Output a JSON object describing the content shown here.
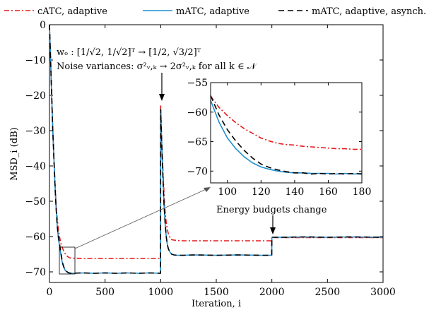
{
  "chart_data": {
    "type": "line",
    "xlabel": "Iteration, i",
    "ylabel": "MSD_i (dB)",
    "xlim": [
      0,
      3000
    ],
    "ylim": [
      -73,
      0
    ],
    "xticks": [
      0,
      500,
      1000,
      1500,
      2000,
      2500,
      3000
    ],
    "yticks": [
      0,
      -10,
      -20,
      -30,
      -40,
      -50,
      -60,
      -70
    ],
    "grid": false,
    "legend_position": "top",
    "series": [
      {
        "name": "cATC, adaptive",
        "color": "#e41a1c",
        "style": "dashdot",
        "x": [
          0,
          10,
          20,
          30,
          40,
          50,
          60,
          70,
          80,
          90,
          100,
          110,
          120,
          130,
          140,
          150,
          160,
          170,
          180,
          200,
          300,
          400,
          500,
          600,
          700,
          800,
          900,
          999,
          1000,
          1010,
          1020,
          1030,
          1040,
          1050,
          1060,
          1070,
          1080,
          1090,
          1100,
          1120,
          1150,
          1200,
          1300,
          1500,
          1700,
          1900,
          1999,
          2000,
          2100,
          2300,
          2500,
          2700,
          3000
        ],
        "y": [
          0,
          -10,
          -20,
          -30,
          -38,
          -45,
          -51,
          -55,
          -58,
          -60,
          -61.5,
          -62.7,
          -63.5,
          -64.3,
          -64.8,
          -65.2,
          -65.6,
          -65.8,
          -66,
          -66.1,
          -66.2,
          -66.2,
          -66.2,
          -66.2,
          -66.2,
          -66.2,
          -66.2,
          -66.2,
          -23,
          -33,
          -41,
          -48,
          -53,
          -56,
          -58,
          -59.3,
          -60,
          -60.6,
          -60.9,
          -61,
          -61.1,
          -61.2,
          -61.2,
          -61.2,
          -61.2,
          -61.2,
          -61.2,
          -60.3,
          -60.3,
          -60.3,
          -60.3,
          -60.3,
          -60.3
        ]
      },
      {
        "name": "mATC, adaptive",
        "color": "#1f8fd0",
        "style": "solid",
        "x": [
          0,
          10,
          20,
          30,
          40,
          50,
          60,
          70,
          80,
          90,
          100,
          110,
          120,
          130,
          140,
          150,
          160,
          170,
          180,
          200,
          300,
          400,
          500,
          600,
          700,
          800,
          900,
          999,
          1000,
          1010,
          1020,
          1030,
          1040,
          1050,
          1060,
          1070,
          1080,
          1090,
          1100,
          1120,
          1150,
          1200,
          1300,
          1500,
          1700,
          1900,
          1999,
          2000,
          2100,
          2300,
          2500,
          2700,
          3000
        ],
        "y": [
          0,
          -10,
          -20,
          -30,
          -38,
          -46,
          -52,
          -57,
          -60.5,
          -62.5,
          -64.5,
          -66.5,
          -68,
          -68.8,
          -69.5,
          -69.8,
          -70.1,
          -70.3,
          -70.4,
          -70.4,
          -70.3,
          -70.4,
          -70.3,
          -70.4,
          -70.3,
          -70.4,
          -70.3,
          -70.4,
          -24,
          -34,
          -43,
          -51,
          -56,
          -60,
          -62.3,
          -63.5,
          -64.2,
          -64.7,
          -65,
          -65.2,
          -65.3,
          -65.3,
          -65.2,
          -65.3,
          -65.2,
          -65.3,
          -65.3,
          -60.2,
          -60.2,
          -60.1,
          -60.2,
          -60.1,
          -60.2
        ]
      },
      {
        "name": "mATC, adaptive, asynch.",
        "color": "#000000",
        "style": "dashed",
        "x": [
          0,
          10,
          20,
          30,
          40,
          50,
          60,
          70,
          80,
          90,
          100,
          110,
          120,
          130,
          140,
          150,
          160,
          170,
          180,
          200,
          300,
          400,
          500,
          600,
          700,
          800,
          900,
          999,
          1000,
          1010,
          1020,
          1030,
          1040,
          1050,
          1060,
          1070,
          1080,
          1090,
          1100,
          1120,
          1150,
          1200,
          1300,
          1500,
          1700,
          1900,
          1999,
          2000,
          2100,
          2300,
          2500,
          2700,
          3000
        ],
        "y": [
          0,
          -10,
          -20,
          -30,
          -38,
          -46,
          -52,
          -57,
          -60,
          -62,
          -64,
          -66,
          -67.7,
          -68.7,
          -69.4,
          -69.8,
          -70,
          -70.2,
          -70.3,
          -70.4,
          -70.3,
          -70.4,
          -70.3,
          -70.4,
          -70.3,
          -70.4,
          -70.3,
          -70.4,
          -24,
          -34,
          -43,
          -51,
          -56,
          -60,
          -62.3,
          -63.5,
          -64.2,
          -64.7,
          -65,
          -65.2,
          -65.3,
          -65.3,
          -65.2,
          -65.3,
          -65.2,
          -65.3,
          -65.3,
          -60.2,
          -60.2,
          -60.1,
          -60.2,
          -60.1,
          -60.2
        ]
      }
    ],
    "inset": {
      "xlim": [
        90,
        180
      ],
      "ylim": [
        -72,
        -55
      ],
      "xticks": [
        100,
        120,
        140,
        160,
        180
      ],
      "yticks": [
        -55,
        -60,
        -65,
        -70
      ],
      "series": [
        {
          "name": "cATC, adaptive",
          "x": [
            90,
            95,
            100,
            105,
            110,
            115,
            120,
            125,
            130,
            135,
            140,
            145,
            150,
            155,
            160,
            165,
            170,
            175,
            180
          ],
          "y": [
            -57.3,
            -59.2,
            -60.6,
            -61.8,
            -62.8,
            -63.6,
            -64.4,
            -64.9,
            -65.3,
            -65.5,
            -65.6,
            -65.8,
            -65.9,
            -66,
            -66.1,
            -66.2,
            -66.2,
            -66.3,
            -66.3
          ]
        },
        {
          "name": "mATC, adaptive",
          "x": [
            90,
            95,
            100,
            105,
            110,
            115,
            120,
            125,
            130,
            135,
            140,
            145,
            150,
            155,
            160,
            165,
            170,
            175,
            180
          ],
          "y": [
            -58,
            -61.7,
            -64.4,
            -66.2,
            -67.6,
            -68.6,
            -69.3,
            -69.7,
            -70,
            -70.2,
            -70.3,
            -70.3,
            -70.4,
            -70.4,
            -70.4,
            -70.5,
            -70.4,
            -70.5,
            -70.4
          ]
        },
        {
          "name": "mATC, adaptive, asynch.",
          "x": [
            90,
            95,
            100,
            105,
            110,
            115,
            120,
            125,
            130,
            135,
            140,
            145,
            150,
            155,
            160,
            165,
            170,
            175,
            180
          ],
          "y": [
            -57.2,
            -60.5,
            -63,
            -64.9,
            -66.5,
            -67.8,
            -68.8,
            -69.4,
            -69.8,
            -70.1,
            -70.3,
            -70.3,
            -70.5,
            -70.4,
            -70.5,
            -70.4,
            -70.5,
            -70.4,
            -70.5
          ]
        }
      ]
    },
    "annotations": {
      "change_line1": "wₒ : [1/√2, 1/√2]ᵀ → [1/2, √3/2]ᵀ",
      "change_line2": "Noise variances: σ²ᵥ,ₖ → 2σ²ᵥ,ₖ for all k ∈ 𝒩",
      "energy": "Energy budgets change"
    }
  }
}
